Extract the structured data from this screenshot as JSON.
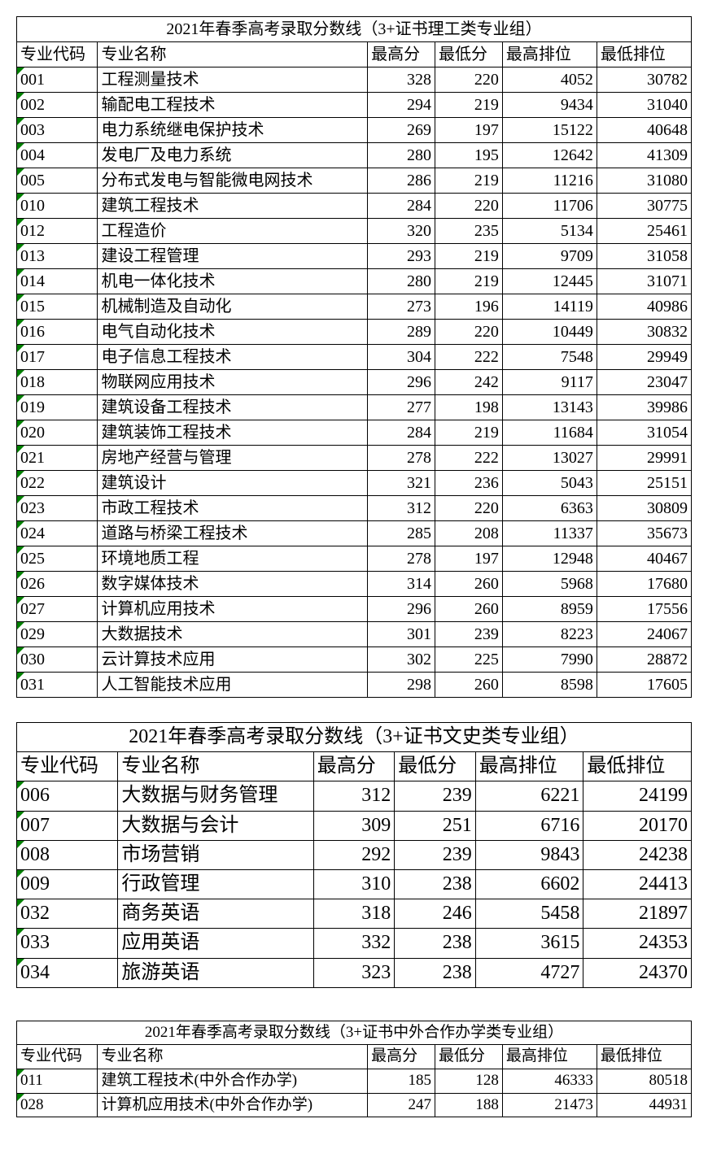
{
  "styling": {
    "background_color": "#ffffff",
    "border_color": "#000000",
    "corner_marker_color": "#008000",
    "font_family": "SimSun",
    "text_color": "#000000",
    "table1": {
      "font_size_pt": 15,
      "col_widths_pct": [
        12,
        40,
        10,
        10,
        14,
        14
      ]
    },
    "table2": {
      "font_size_pt": 18,
      "col_widths_pct": [
        15,
        29,
        12,
        12,
        16,
        16
      ]
    },
    "table3": {
      "font_size_pt": 14,
      "col_widths_pct": [
        12,
        40,
        10,
        10,
        14,
        14
      ]
    }
  },
  "columns": {
    "code": "专业代码",
    "name": "专业名称",
    "max_score": "最高分",
    "min_score": "最低分",
    "max_rank": "最高排位",
    "min_rank": "最低排位"
  },
  "table1": {
    "title": "2021年春季高考录取分数线（3+证书理工类专业组）",
    "rows": [
      {
        "code": "001",
        "name": "工程测量技术",
        "max": 328,
        "min": 220,
        "maxr": 4052,
        "minr": 30782
      },
      {
        "code": "002",
        "name": "输配电工程技术",
        "max": 294,
        "min": 219,
        "maxr": 9434,
        "minr": 31040
      },
      {
        "code": "003",
        "name": "电力系统继电保护技术",
        "max": 269,
        "min": 197,
        "maxr": 15122,
        "minr": 40648
      },
      {
        "code": "004",
        "name": "发电厂及电力系统",
        "max": 280,
        "min": 195,
        "maxr": 12642,
        "minr": 41309
      },
      {
        "code": "005",
        "name": "分布式发电与智能微电网技术",
        "max": 286,
        "min": 219,
        "maxr": 11216,
        "minr": 31080
      },
      {
        "code": "010",
        "name": "建筑工程技术",
        "max": 284,
        "min": 220,
        "maxr": 11706,
        "minr": 30775
      },
      {
        "code": "012",
        "name": "工程造价",
        "max": 320,
        "min": 235,
        "maxr": 5134,
        "minr": 25461
      },
      {
        "code": "013",
        "name": "建设工程管理",
        "max": 293,
        "min": 219,
        "maxr": 9709,
        "minr": 31058
      },
      {
        "code": "014",
        "name": "机电一体化技术",
        "max": 280,
        "min": 219,
        "maxr": 12445,
        "minr": 31071
      },
      {
        "code": "015",
        "name": "机械制造及自动化",
        "max": 273,
        "min": 196,
        "maxr": 14119,
        "minr": 40986
      },
      {
        "code": "016",
        "name": "电气自动化技术",
        "max": 289,
        "min": 220,
        "maxr": 10449,
        "minr": 30832
      },
      {
        "code": "017",
        "name": "电子信息工程技术",
        "max": 304,
        "min": 222,
        "maxr": 7548,
        "minr": 29949
      },
      {
        "code": "018",
        "name": "物联网应用技术",
        "max": 296,
        "min": 242,
        "maxr": 9117,
        "minr": 23047
      },
      {
        "code": "019",
        "name": "建筑设备工程技术",
        "max": 277,
        "min": 198,
        "maxr": 13143,
        "minr": 39986
      },
      {
        "code": "020",
        "name": "建筑装饰工程技术",
        "max": 284,
        "min": 219,
        "maxr": 11684,
        "minr": 31054
      },
      {
        "code": "021",
        "name": "房地产经营与管理",
        "max": 278,
        "min": 222,
        "maxr": 13027,
        "minr": 29991
      },
      {
        "code": "022",
        "name": "建筑设计",
        "max": 321,
        "min": 236,
        "maxr": 5043,
        "minr": 25151
      },
      {
        "code": "023",
        "name": "市政工程技术",
        "max": 312,
        "min": 220,
        "maxr": 6363,
        "minr": 30809
      },
      {
        "code": "024",
        "name": "道路与桥梁工程技术",
        "max": 285,
        "min": 208,
        "maxr": 11337,
        "minr": 35673
      },
      {
        "code": "025",
        "name": "环境地质工程",
        "max": 278,
        "min": 197,
        "maxr": 12948,
        "minr": 40467
      },
      {
        "code": "026",
        "name": "数字媒体技术",
        "max": 314,
        "min": 260,
        "maxr": 5968,
        "minr": 17680
      },
      {
        "code": "027",
        "name": "计算机应用技术",
        "max": 296,
        "min": 260,
        "maxr": 8959,
        "minr": 17556
      },
      {
        "code": "029",
        "name": "大数据技术",
        "max": 301,
        "min": 239,
        "maxr": 8223,
        "minr": 24067
      },
      {
        "code": "030",
        "name": "云计算技术应用",
        "max": 302,
        "min": 225,
        "maxr": 7990,
        "minr": 28872
      },
      {
        "code": "031",
        "name": "人工智能技术应用",
        "max": 298,
        "min": 260,
        "maxr": 8598,
        "minr": 17605
      }
    ]
  },
  "table2": {
    "title": "2021年春季高考录取分数线（3+证书文史类专业组）",
    "rows": [
      {
        "code": "006",
        "name": "大数据与财务管理",
        "max": 312,
        "min": 239,
        "maxr": 6221,
        "minr": 24199
      },
      {
        "code": "007",
        "name": "大数据与会计",
        "max": 309,
        "min": 251,
        "maxr": 6716,
        "minr": 20170
      },
      {
        "code": "008",
        "name": "市场营销",
        "max": 292,
        "min": 239,
        "maxr": 9843,
        "minr": 24238
      },
      {
        "code": "009",
        "name": "行政管理",
        "max": 310,
        "min": 238,
        "maxr": 6602,
        "minr": 24413
      },
      {
        "code": "032",
        "name": "商务英语",
        "max": 318,
        "min": 246,
        "maxr": 5458,
        "minr": 21897
      },
      {
        "code": "033",
        "name": "应用英语",
        "max": 332,
        "min": 238,
        "maxr": 3615,
        "minr": 24353
      },
      {
        "code": "034",
        "name": "旅游英语",
        "max": 323,
        "min": 238,
        "maxr": 4727,
        "minr": 24370
      }
    ]
  },
  "table3": {
    "title": "2021年春季高考录取分数线（3+证书中外合作办学类专业组）",
    "rows": [
      {
        "code": "011",
        "name": "建筑工程技术(中外合作办学)",
        "max": 185,
        "min": 128,
        "maxr": 46333,
        "minr": 80518
      },
      {
        "code": "028",
        "name": "计算机应用技术(中外合作办学)",
        "max": 247,
        "min": 188,
        "maxr": 21473,
        "minr": 44931
      }
    ]
  }
}
